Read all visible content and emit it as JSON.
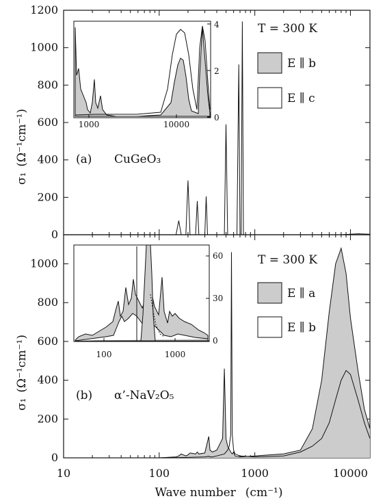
{
  "xlabel": "Wave number",
  "xlabel_unit": "(cm⁻¹)",
  "x_tick_labels": [
    "10",
    "100",
    "1000",
    "10000"
  ],
  "ylabel": "σ₁",
  "ylabel_unit": "(Ω⁻¹cm⁻¹)",
  "panels": [
    {
      "panel_label": "(a)",
      "material": "CuGeO₃",
      "temperature": "T = 300 K",
      "legend": [
        {
          "label": "E ∥ b",
          "fill": "#cccccc"
        },
        {
          "label": "E ∥ c",
          "fill": "#ffffff"
        }
      ],
      "y_tick_labels": [
        "0",
        "200",
        "400",
        "600",
        "800",
        "1000",
        "1200"
      ],
      "inset_x_tick_labels": [
        "1000",
        "10000"
      ],
      "inset_y_tick_labels": [
        "0",
        "2",
        "4"
      ]
    },
    {
      "panel_label": "(b)",
      "material": "α’-NaV₂O₅",
      "temperature": "T = 300 K",
      "legend": [
        {
          "label": "E ∥ a",
          "fill": "#cccccc"
        },
        {
          "label": "E ∥ b",
          "fill": "#ffffff"
        }
      ],
      "y_tick_labels": [
        "0",
        "200",
        "400",
        "600",
        "800",
        "1000"
      ],
      "inset_x_tick_labels": [
        "100",
        "1000"
      ],
      "inset_y_tick_labels": [
        "0",
        "30",
        "60"
      ]
    }
  ],
  "chart_data": [
    {
      "type": "line",
      "x_scale": "log",
      "xlim": [
        10,
        16000
      ],
      "ylim": [
        0,
        1200
      ],
      "series": [
        {
          "x": [
            10,
            150,
            160,
            170,
            190,
            200,
            210,
            240,
            250,
            260,
            300,
            310,
            320,
            450,
            480,
            500,
            520,
            550,
            650,
            680,
            700,
            720,
            740,
            760,
            800,
            2000,
            8000,
            12000,
            16000
          ],
          "y": [
            0,
            0,
            75,
            0,
            0,
            290,
            0,
            0,
            180,
            0,
            0,
            205,
            0,
            0,
            0,
            590,
            0,
            0,
            0,
            910,
            0,
            0,
            1140,
            0,
            0,
            0,
            0,
            5,
            3
          ]
        }
      ]
    },
    {
      "type": "area",
      "x_scale": "log",
      "xlim": [
        10,
        16000
      ],
      "ylim": [
        0,
        1150
      ],
      "series": [
        {
          "x": [
            10,
            100,
            150,
            160,
            170,
            190,
            200,
            210,
            240,
            250,
            260,
            300,
            330,
            340,
            360,
            400,
            460,
            480,
            500,
            520,
            560,
            580,
            600,
            620,
            700,
            1000,
            2000,
            3000,
            4000,
            5000,
            6000,
            7000,
            8000,
            9000,
            10000,
            12000,
            14000,
            16000
          ],
          "y": [
            0,
            0,
            5,
            10,
            20,
            10,
            15,
            25,
            20,
            30,
            20,
            25,
            110,
            40,
            30,
            40,
            100,
            460,
            100,
            60,
            30,
            20,
            30,
            10,
            5,
            10,
            20,
            40,
            150,
            400,
            750,
            1000,
            1080,
            950,
            720,
            450,
            250,
            150
          ]
        },
        {
          "x": [
            10,
            100,
            200,
            300,
            330,
            340,
            360,
            400,
            480,
            500,
            520,
            540,
            560,
            570,
            580,
            600,
            620,
            700,
            1000,
            2000,
            3000,
            4000,
            5000,
            6000,
            7000,
            8000,
            9000,
            10000,
            12000,
            14000,
            16000
          ],
          "y": [
            0,
            0,
            2,
            5,
            8,
            5,
            5,
            10,
            20,
            30,
            40,
            60,
            120,
            1060,
            120,
            40,
            20,
            10,
            5,
            10,
            30,
            60,
            100,
            180,
            300,
            400,
            450,
            430,
            300,
            180,
            100
          ]
        }
      ]
    }
  ]
}
